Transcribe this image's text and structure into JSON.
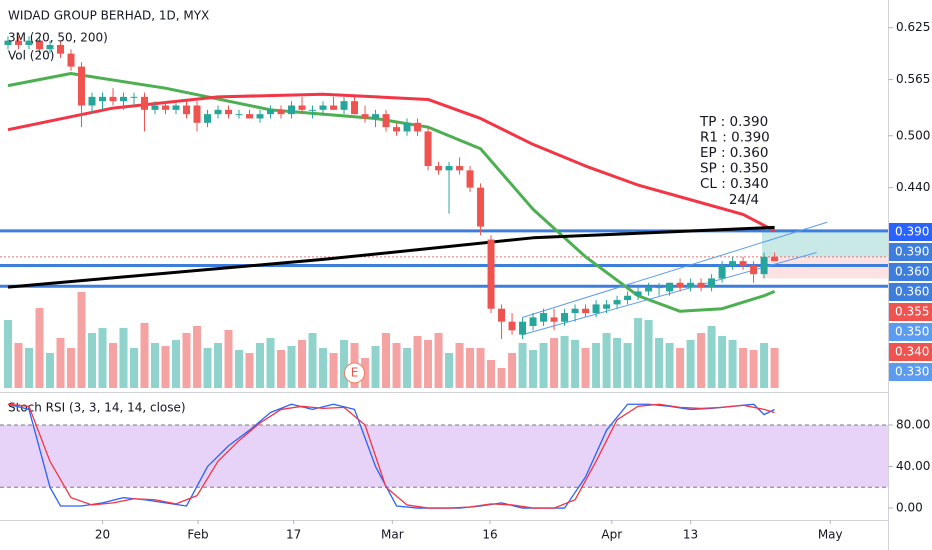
{
  "chart_data": {
    "type": "candlestick",
    "title": "WIDAD GROUP BERHAD, 1D, MYX",
    "indicator_labels": [
      "3M (20, 50, 200)",
      "Vol (20)"
    ],
    "up_color": "#26a69a",
    "down_color": "#ef5350",
    "volume_up_color": "#8fd3cc",
    "volume_down_color": "#f5a3a2",
    "candles": [
      [
        0.605,
        0.615,
        0.6,
        0.61
      ],
      [
        0.61,
        0.615,
        0.6,
        0.605
      ],
      [
        0.605,
        0.615,
        0.6,
        0.61
      ],
      [
        0.61,
        0.615,
        0.595,
        0.6
      ],
      [
        0.6,
        0.61,
        0.595,
        0.605
      ],
      [
        0.605,
        0.61,
        0.59,
        0.595
      ],
      [
        0.595,
        0.6,
        0.575,
        0.58
      ],
      [
        0.58,
        0.585,
        0.51,
        0.535
      ],
      [
        0.535,
        0.55,
        0.525,
        0.545
      ],
      [
        0.54,
        0.55,
        0.53,
        0.545
      ],
      [
        0.545,
        0.555,
        0.535,
        0.54
      ],
      [
        0.54,
        0.55,
        0.53,
        0.545
      ],
      [
        0.545,
        0.55,
        0.535,
        0.545
      ],
      [
        0.545,
        0.55,
        0.505,
        0.53
      ],
      [
        0.53,
        0.54,
        0.525,
        0.535
      ],
      [
        0.535,
        0.54,
        0.525,
        0.53
      ],
      [
        0.53,
        0.54,
        0.525,
        0.535
      ],
      [
        0.535,
        0.54,
        0.52,
        0.525
      ],
      [
        0.535,
        0.54,
        0.505,
        0.515
      ],
      [
        0.515,
        0.53,
        0.51,
        0.525
      ],
      [
        0.525,
        0.535,
        0.52,
        0.53
      ],
      [
        0.53,
        0.535,
        0.52,
        0.525
      ],
      [
        0.525,
        0.53,
        0.52,
        0.525
      ],
      [
        0.525,
        0.53,
        0.52,
        0.52
      ],
      [
        0.52,
        0.53,
        0.515,
        0.525
      ],
      [
        0.525,
        0.535,
        0.52,
        0.53
      ],
      [
        0.53,
        0.535,
        0.52,
        0.525
      ],
      [
        0.525,
        0.54,
        0.52,
        0.535
      ],
      [
        0.535,
        0.545,
        0.525,
        0.53
      ],
      [
        0.53,
        0.535,
        0.52,
        0.53
      ],
      [
        0.53,
        0.54,
        0.525,
        0.535
      ],
      [
        0.535,
        0.545,
        0.53,
        0.53
      ],
      [
        0.53,
        0.545,
        0.525,
        0.54
      ],
      [
        0.54,
        0.545,
        0.525,
        0.525
      ],
      [
        0.525,
        0.535,
        0.515,
        0.52
      ],
      [
        0.52,
        0.53,
        0.51,
        0.525
      ],
      [
        0.525,
        0.53,
        0.505,
        0.51
      ],
      [
        0.51,
        0.515,
        0.5,
        0.505
      ],
      [
        0.505,
        0.52,
        0.5,
        0.515
      ],
      [
        0.515,
        0.52,
        0.5,
        0.505
      ],
      [
        0.505,
        0.51,
        0.46,
        0.465
      ],
      [
        0.465,
        0.47,
        0.455,
        0.46
      ],
      [
        0.46,
        0.47,
        0.41,
        0.465
      ],
      [
        0.465,
        0.475,
        0.455,
        0.46
      ],
      [
        0.46,
        0.465,
        0.435,
        0.44
      ],
      [
        0.44,
        0.445,
        0.385,
        0.395
      ],
      [
        0.38,
        0.385,
        0.295,
        0.3
      ],
      [
        0.3,
        0.305,
        0.265,
        0.285
      ],
      [
        0.285,
        0.295,
        0.27,
        0.275
      ],
      [
        0.27,
        0.29,
        0.265,
        0.285
      ],
      [
        0.28,
        0.295,
        0.275,
        0.29
      ],
      [
        0.285,
        0.3,
        0.28,
        0.295
      ],
      [
        0.29,
        0.3,
        0.275,
        0.285
      ],
      [
        0.285,
        0.3,
        0.28,
        0.295
      ],
      [
        0.295,
        0.305,
        0.285,
        0.3
      ],
      [
        0.3,
        0.305,
        0.29,
        0.295
      ],
      [
        0.295,
        0.31,
        0.29,
        0.305
      ],
      [
        0.3,
        0.31,
        0.295,
        0.305
      ],
      [
        0.305,
        0.315,
        0.3,
        0.31
      ],
      [
        0.31,
        0.32,
        0.305,
        0.315
      ],
      [
        0.315,
        0.325,
        0.31,
        0.32
      ],
      [
        0.32,
        0.33,
        0.315,
        0.325
      ],
      [
        0.325,
        0.33,
        0.315,
        0.325
      ],
      [
        0.32,
        0.33,
        0.315,
        0.33
      ],
      [
        0.33,
        0.335,
        0.32,
        0.325
      ],
      [
        0.325,
        0.335,
        0.32,
        0.33
      ],
      [
        0.33,
        0.335,
        0.32,
        0.325
      ],
      [
        0.325,
        0.34,
        0.32,
        0.335
      ],
      [
        0.335,
        0.355,
        0.33,
        0.35
      ],
      [
        0.35,
        0.36,
        0.345,
        0.355
      ],
      [
        0.355,
        0.36,
        0.345,
        0.35
      ],
      [
        0.35,
        0.355,
        0.33,
        0.34
      ],
      [
        0.34,
        0.365,
        0.335,
        0.36
      ],
      [
        0.36,
        0.365,
        0.355,
        0.355
      ]
    ],
    "volume": [
      68,
      45,
      40,
      80,
      35,
      50,
      40,
      96,
      55,
      60,
      45,
      60,
      40,
      65,
      45,
      42,
      48,
      55,
      62,
      40,
      45,
      58,
      38,
      35,
      45,
      50,
      38,
      42,
      48,
      55,
      40,
      35,
      48,
      45,
      30,
      42,
      55,
      45,
      40,
      52,
      48,
      55,
      35,
      45,
      40,
      40,
      28,
      20,
      35,
      45,
      38,
      45,
      50,
      52,
      48,
      40,
      45,
      55,
      50,
      45,
      70,
      68,
      50,
      45,
      40,
      48,
      55,
      62,
      52,
      48,
      40,
      38,
      45,
      40
    ],
    "xlim": [
      -0.76,
      83.8
    ],
    "xticks": [
      {
        "value": 9,
        "label": "20"
      },
      {
        "value": 18.1,
        "label": "Feb"
      },
      {
        "value": 27.2,
        "label": "17"
      },
      {
        "value": 36.6,
        "label": "Mar"
      },
      {
        "value": 45.9,
        "label": "16"
      },
      {
        "value": 57.5,
        "label": "Apr"
      },
      {
        "value": 65,
        "label": "13"
      },
      {
        "value": 78.3,
        "label": "May"
      }
    ],
    "ylim": [
      0.206,
      0.657
    ],
    "yticks": [
      0.625,
      0.565,
      {
        "value": 0.5,
        "label": "0.500"
      },
      {
        "value": 0.44,
        "label": "0.440"
      }
    ],
    "moving_averages": [
      {
        "color": "#4caf50",
        "x": [
          0,
          6,
          15,
          25,
          35,
          40,
          45,
          50,
          55,
          60,
          64,
          68,
          72,
          73
        ],
        "values": [
          0.558,
          0.572,
          0.555,
          0.53,
          0.52,
          0.51,
          0.485,
          0.415,
          0.36,
          0.315,
          0.297,
          0.3,
          0.315,
          0.32
        ]
      },
      {
        "color": "#f23645",
        "x": [
          0,
          10,
          20,
          30,
          40,
          45,
          50,
          55,
          60,
          65,
          70,
          73
        ],
        "values": [
          0.507,
          0.532,
          0.545,
          0.548,
          0.542,
          0.52,
          0.49,
          0.465,
          0.443,
          0.426,
          0.409,
          0.39
        ]
      },
      {
        "color": "#000000",
        "x": [
          0,
          30,
          50,
          73
        ],
        "values": [
          0.325,
          0.357,
          0.382,
          0.394
        ]
      }
    ],
    "levels": [
      {
        "value": 0.39,
        "color": "#3d7ddb",
        "dash": false
      },
      {
        "value": 0.36,
        "color": "#e57373",
        "dash": true
      },
      {
        "value": 0.35,
        "color": "#3d7ddb",
        "dash": false
      },
      {
        "value": 0.326,
        "color": "#3d7ddb",
        "dash": false
      }
    ],
    "channel": {
      "color": "#5b9cf0",
      "lines": [
        {
          "x": [
            49,
            77
          ],
          "values": [
            0.27,
            0.365
          ]
        },
        {
          "x": [
            49,
            78
          ],
          "values": [
            0.29,
            0.4
          ]
        }
      ]
    },
    "zones": [
      {
        "x": [
          71.8,
          83.8
        ],
        "y": [
          0.36,
          0.39
        ],
        "color": "#b2dfdb"
      },
      {
        "x": [
          71.8,
          83.8
        ],
        "y": [
          0.335,
          0.36
        ],
        "color": "#fbd5d5"
      }
    ],
    "price_tags": [
      {
        "label": "0.390",
        "color": "#2962ff"
      },
      {
        "label": "0.390",
        "color": "#3d7ddb"
      },
      {
        "label": "0.360",
        "color": "#3d7ddb"
      },
      {
        "label": "0.360",
        "color": "#3d7ddb"
      },
      {
        "label": "0.355",
        "color": "#ef5350"
      },
      {
        "label": "0.350",
        "color": "#5b9cf0"
      },
      {
        "label": "0.340",
        "color": "#ef5350"
      },
      {
        "label": "0.330",
        "color": "#5b9cf0"
      }
    ],
    "annotation": [
      "TP : 0.390",
      "R1 : 0.390",
      "EP : 0.360",
      "SP : 0.350",
      "CL : 0.340"
    ],
    "date_note": "24/4",
    "event_marker": {
      "label": "E",
      "x": 33
    },
    "stoch": {
      "title": "Stoch RSI (3, 3, 14, 14, close)",
      "ylim": [
        -11.5,
        106
      ],
      "yticks": [
        {
          "value": 80,
          "label": "80.00"
        },
        {
          "value": 40,
          "label": "40.00"
        },
        {
          "value": 0,
          "label": "0.00"
        }
      ],
      "band": [
        20,
        80
      ],
      "band_color": "#e1c8f5",
      "series": [
        {
          "color": "#2962ff",
          "x": [
            0,
            2,
            4,
            5,
            7,
            9,
            11,
            13,
            15,
            17,
            19,
            21,
            23,
            25,
            27,
            29,
            31,
            33,
            35,
            37,
            39,
            41,
            43,
            45,
            47,
            49,
            51,
            53,
            55,
            57,
            59,
            61,
            63,
            65,
            67,
            69,
            71,
            72,
            73
          ],
          "values": [
            100,
            95,
            20,
            2,
            2,
            5,
            10,
            8,
            5,
            2,
            40,
            60,
            75,
            92,
            100,
            95,
            100,
            95,
            40,
            2,
            0,
            0,
            0,
            2,
            5,
            0,
            0,
            0,
            30,
            75,
            100,
            100,
            98,
            95,
            96,
            98,
            100,
            90,
            95
          ]
        },
        {
          "color": "#f23645",
          "x": [
            0,
            2,
            4,
            6,
            8,
            10,
            12,
            14,
            16,
            18,
            20,
            22,
            24,
            26,
            28,
            30,
            32,
            34,
            36,
            38,
            40,
            42,
            44,
            46,
            48,
            50,
            52,
            54,
            56,
            58,
            60,
            62,
            64,
            66,
            68,
            70,
            72,
            73
          ],
          "values": [
            100,
            98,
            45,
            10,
            3,
            5,
            9,
            8,
            4,
            12,
            45,
            65,
            82,
            95,
            98,
            96,
            97,
            80,
            20,
            3,
            0,
            0,
            1,
            4,
            3,
            0,
            0,
            8,
            45,
            85,
            98,
            100,
            97,
            96,
            97,
            99,
            95,
            92
          ]
        }
      ]
    }
  }
}
